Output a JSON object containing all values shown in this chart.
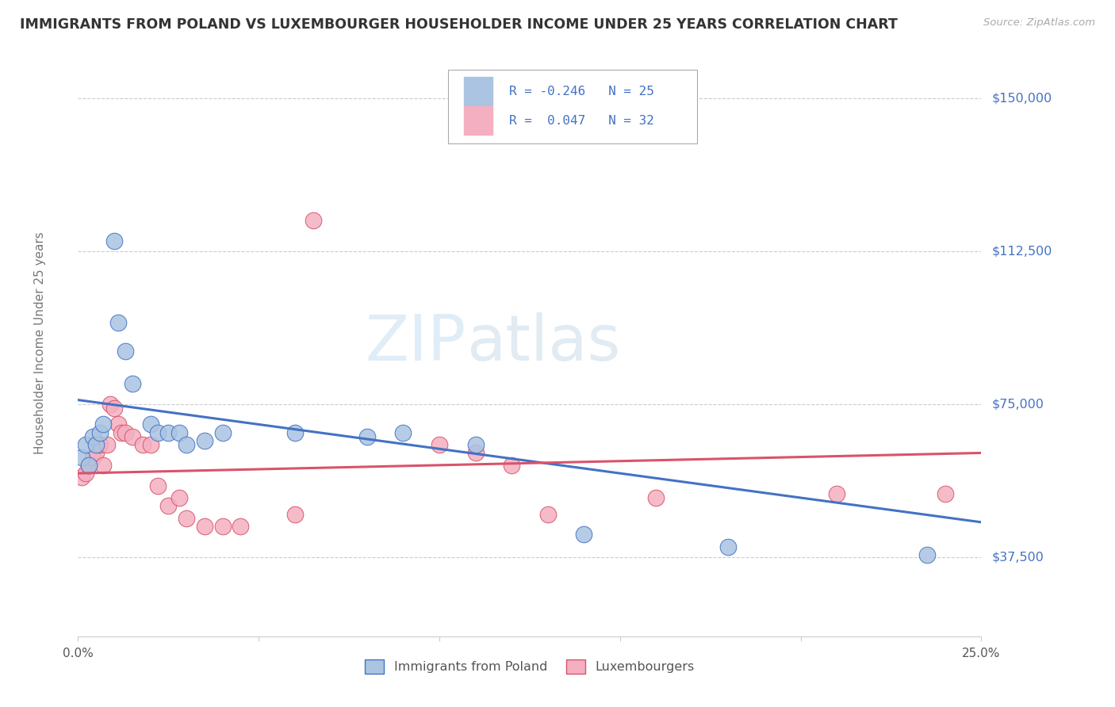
{
  "title": "IMMIGRANTS FROM POLAND VS LUXEMBOURGER HOUSEHOLDER INCOME UNDER 25 YEARS CORRELATION CHART",
  "source": "Source: ZipAtlas.com",
  "ylabel": "Householder Income Under 25 years",
  "legend1_label": "Immigrants from Poland",
  "legend2_label": "Luxembourgers",
  "r1": -0.246,
  "n1": 25,
  "r2": 0.047,
  "n2": 32,
  "yticks": [
    37500,
    75000,
    112500,
    150000
  ],
  "ytick_labels": [
    "$37,500",
    "$75,000",
    "$112,500",
    "$150,000"
  ],
  "xmin": 0.0,
  "xmax": 0.25,
  "ymin": 18000,
  "ymax": 162000,
  "color_poland": "#aac4e2",
  "color_lux": "#f4afc0",
  "color_poland_line": "#4472c4",
  "color_lux_line": "#d9536a",
  "color_text_blue": "#4472c4",
  "color_text_red": "#d9536a",
  "watermark_zip": "ZIP",
  "watermark_atlas": "atlas",
  "poland_x": [
    0.001,
    0.002,
    0.003,
    0.004,
    0.005,
    0.006,
    0.007,
    0.01,
    0.011,
    0.013,
    0.015,
    0.02,
    0.022,
    0.025,
    0.028,
    0.03,
    0.035,
    0.04,
    0.06,
    0.08,
    0.09,
    0.11,
    0.14,
    0.18,
    0.235
  ],
  "poland_y": [
    62000,
    65000,
    60000,
    67000,
    65000,
    68000,
    70000,
    115000,
    95000,
    88000,
    80000,
    70000,
    68000,
    68000,
    68000,
    65000,
    66000,
    68000,
    68000,
    67000,
    68000,
    65000,
    43000,
    40000,
    38000
  ],
  "lux_x": [
    0.001,
    0.002,
    0.003,
    0.004,
    0.005,
    0.006,
    0.007,
    0.008,
    0.009,
    0.01,
    0.011,
    0.012,
    0.013,
    0.015,
    0.018,
    0.02,
    0.022,
    0.025,
    0.028,
    0.03,
    0.035,
    0.04,
    0.045,
    0.06,
    0.065,
    0.1,
    0.11,
    0.12,
    0.13,
    0.16,
    0.21,
    0.24
  ],
  "lux_y": [
    57000,
    58000,
    60000,
    62000,
    63000,
    65000,
    60000,
    65000,
    75000,
    74000,
    70000,
    68000,
    68000,
    67000,
    65000,
    65000,
    55000,
    50000,
    52000,
    47000,
    45000,
    45000,
    45000,
    48000,
    120000,
    65000,
    63000,
    60000,
    48000,
    52000,
    53000,
    53000
  ],
  "poland_line_y0": 76000,
  "poland_line_y1": 46000,
  "lux_line_y0": 58000,
  "lux_line_y1": 63000
}
